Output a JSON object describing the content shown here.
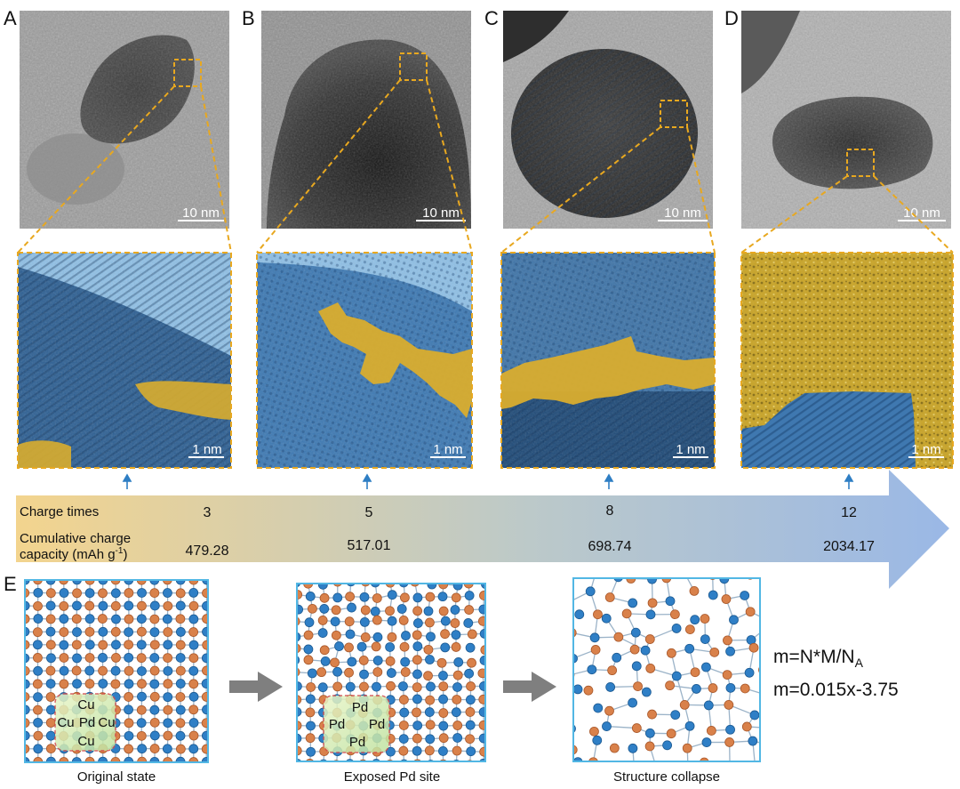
{
  "panels": [
    {
      "letter": "A",
      "scale_top": "10 nm",
      "scale_bottom": "1 nm"
    },
    {
      "letter": "B",
      "scale_top": "10 nm",
      "scale_bottom": "1 nm"
    },
    {
      "letter": "C",
      "scale_top": "10 nm",
      "scale_bottom": "1 nm"
    },
    {
      "letter": "D",
      "scale_top": "10 nm",
      "scale_bottom": "1 nm"
    }
  ],
  "arrow_row": {
    "charge_label": "Charge times",
    "capacity_label_line1": "Cumulative charge",
    "capacity_label_line2": "capacity (mAh g",
    "capacity_label_sup": "-1",
    "capacity_label_end": ")",
    "charge_values": [
      "3",
      "5",
      "8",
      "12"
    ],
    "capacity_values": [
      "479.28",
      "517.01",
      "698.74",
      "2034.17"
    ]
  },
  "panel_e": {
    "letter": "E",
    "captions": [
      "Original state",
      "Exposed Pd site",
      "Structure collapse"
    ],
    "state1_labels": {
      "top": "Cu",
      "left": "Cu",
      "center": "Pd",
      "right": "Cu",
      "bottom": "Cu"
    },
    "state2_labels": {
      "top": "Pd",
      "left": "Pd",
      "right": "Pd",
      "bottom": "Pd"
    },
    "equation1_main": "m=N*M/N",
    "equation1_sub": "A",
    "equation2": "m=0.015x-3.75"
  },
  "colors": {
    "copper_atom": "#d9814a",
    "blue_atom": "#2f7fc6",
    "gold_region": "#d9ad2e",
    "blue_region": "#5aa0d6",
    "dash_gold": "#e8a820",
    "frame_blue": "#52b7e4",
    "arrow_start": "#f3d48e",
    "arrow_end": "#9ab8e6",
    "tick_blue": "#2e7ec4",
    "gray_arrow": "#7f7f7f"
  }
}
